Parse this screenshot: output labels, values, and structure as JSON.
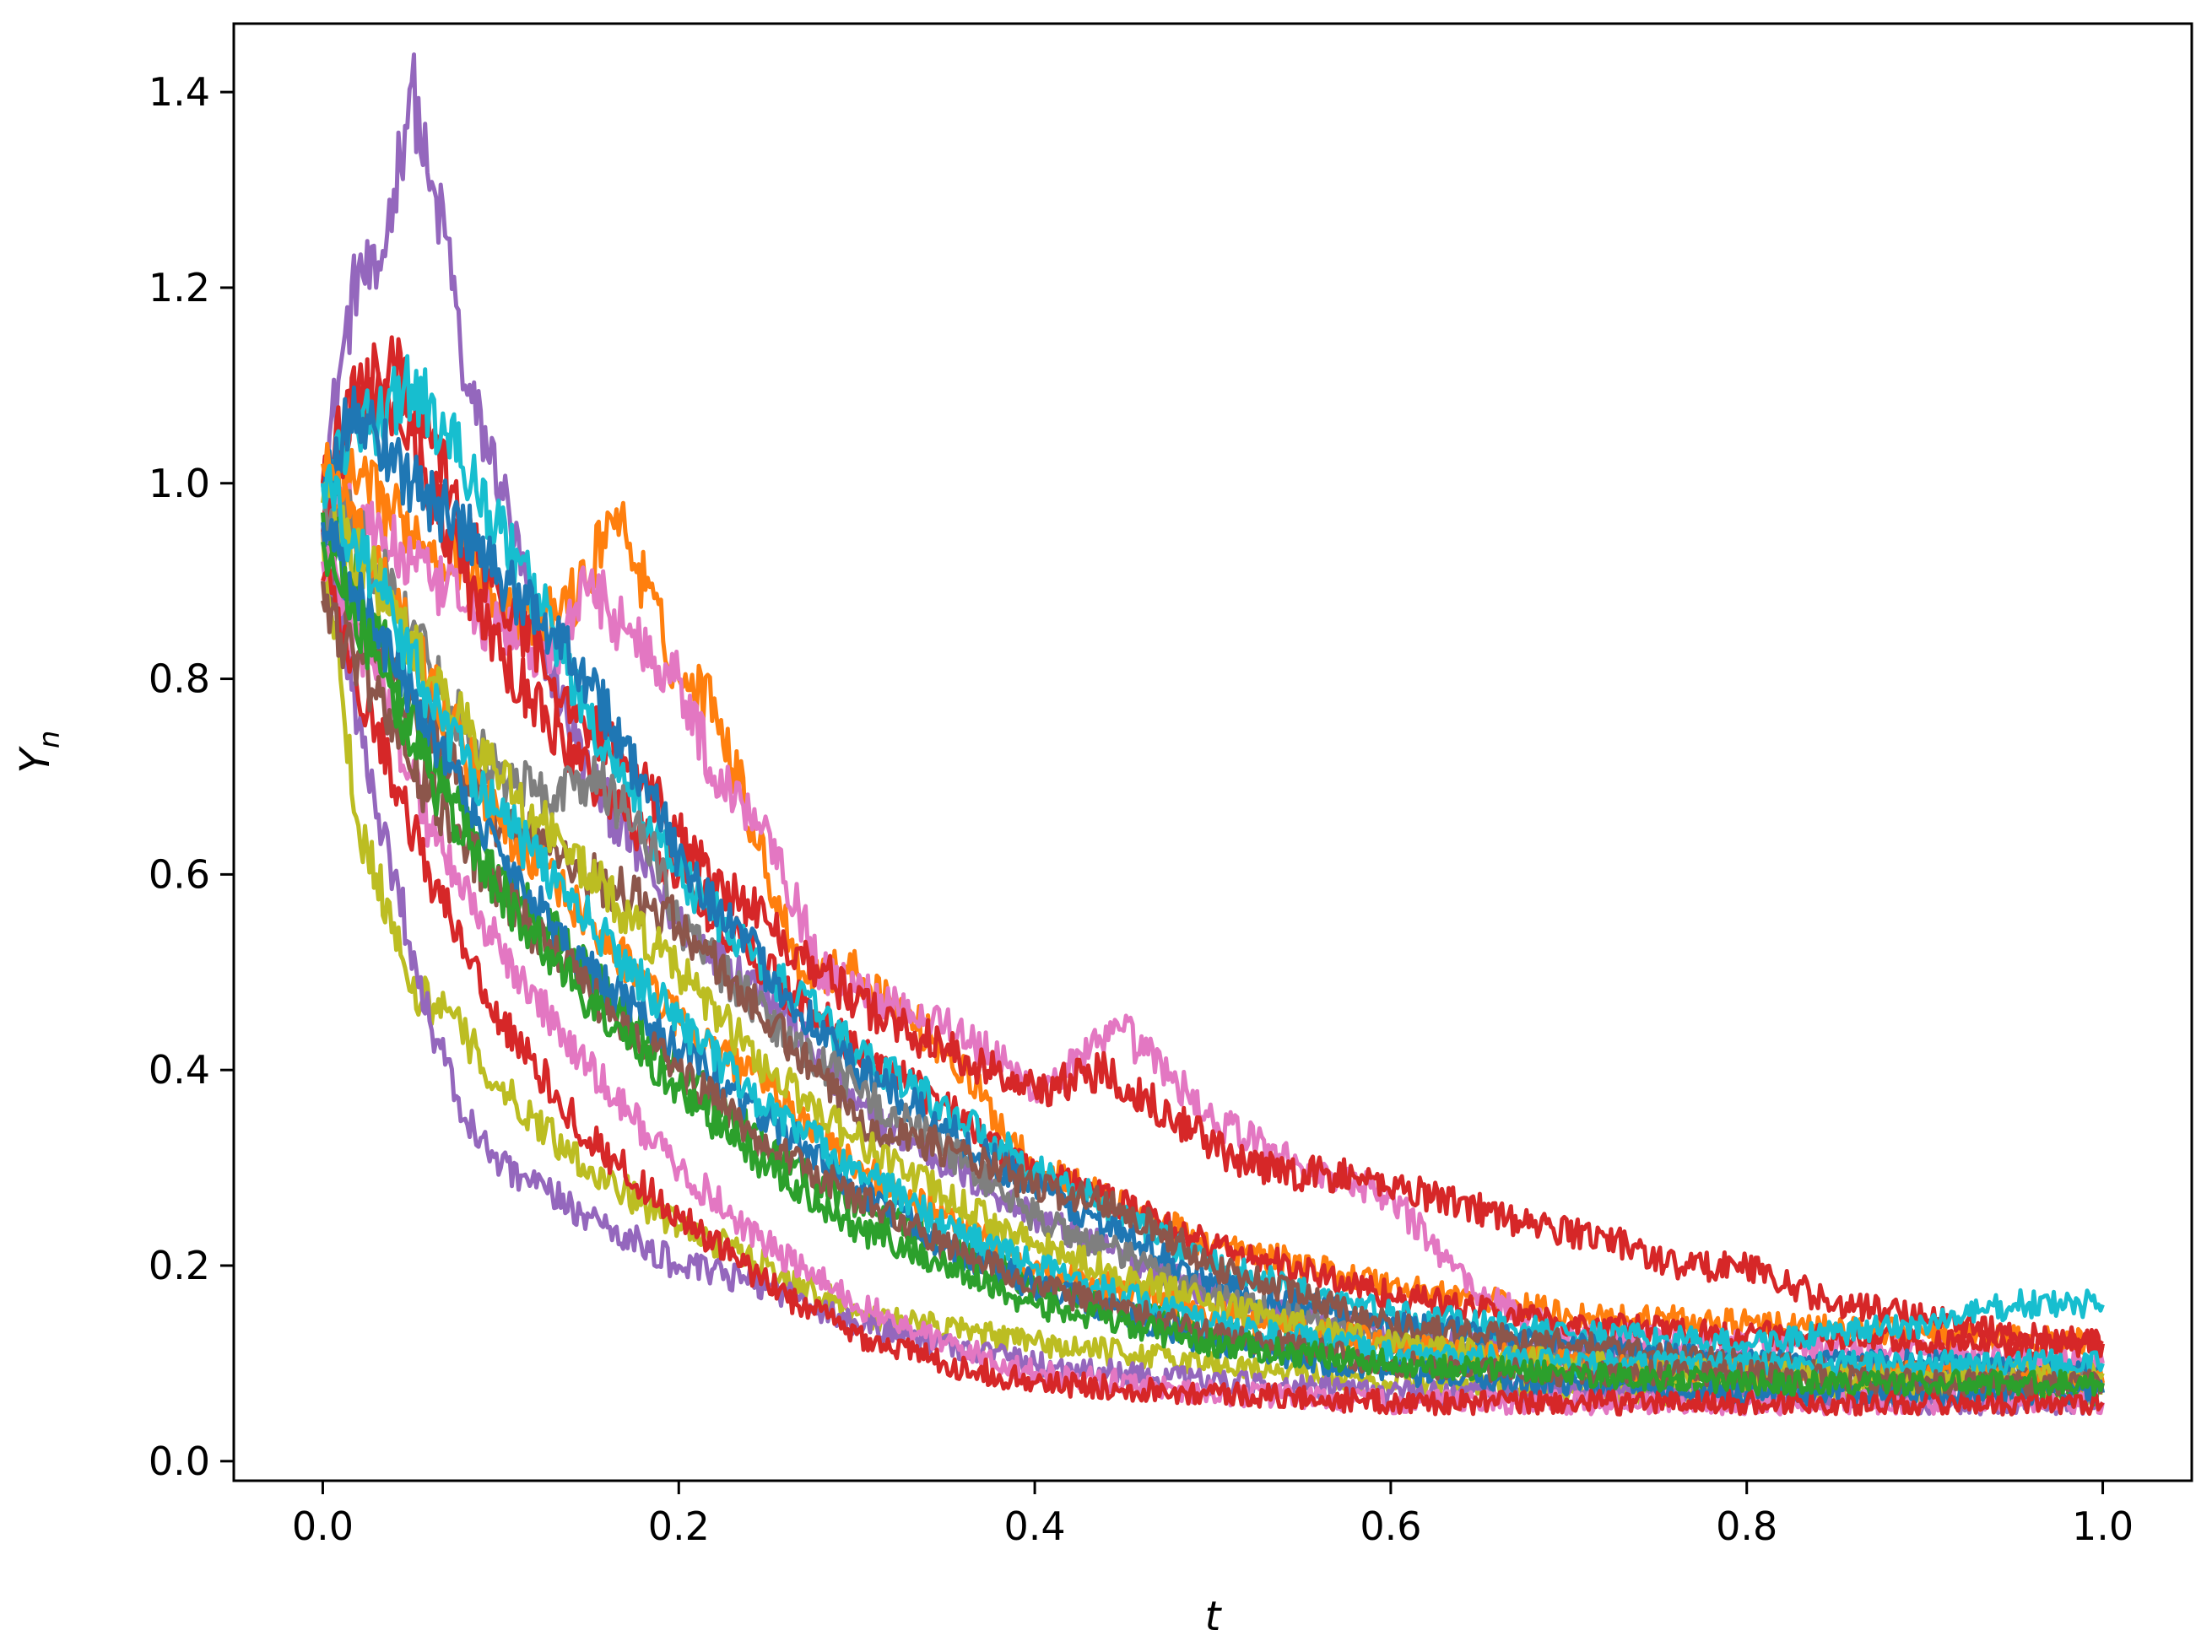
{
  "chart_data": {
    "type": "line",
    "title": "",
    "xlabel": "t",
    "ylabel": {
      "main": "Y",
      "sub": "n"
    },
    "xlim": [
      -0.05,
      1.05
    ],
    "ylim": [
      -0.02,
      1.47
    ],
    "x_ticks": [
      {
        "value": 0.0,
        "label": "0.0"
      },
      {
        "value": 0.2,
        "label": "0.2"
      },
      {
        "value": 0.4,
        "label": "0.4"
      },
      {
        "value": 0.6,
        "label": "0.6"
      },
      {
        "value": 0.8,
        "label": "0.8"
      },
      {
        "value": 1.0,
        "label": "1.0"
      }
    ],
    "y_ticks": [
      {
        "value": 0.0,
        "label": "0.0"
      },
      {
        "value": 0.2,
        "label": "0.2"
      },
      {
        "value": 0.4,
        "label": "0.4"
      },
      {
        "value": 0.6,
        "label": "0.6"
      },
      {
        "value": 0.8,
        "label": "0.8"
      },
      {
        "value": 1.0,
        "label": "1.0"
      },
      {
        "value": 1.2,
        "label": "1.2"
      },
      {
        "value": 1.4,
        "label": "1.4"
      }
    ],
    "grid": false,
    "legend": false,
    "palette": [
      "#1f77b4",
      "#ff7f0e",
      "#2ca02c",
      "#d62728",
      "#9467bd",
      "#8c564b",
      "#e377c2",
      "#7f7f7f",
      "#bcbd22",
      "#17becf"
    ],
    "series": [
      {
        "color": "#9467bd",
        "x": [
          0,
          0.01,
          0.02,
          0.03,
          0.04,
          0.05,
          0.06,
          0.07,
          0.08,
          0.1,
          0.12,
          0.15,
          0.2,
          0.25,
          0.3,
          0.4,
          0.5,
          0.6,
          0.7,
          0.8,
          0.9,
          1.0
        ],
        "y": [
          1.0,
          1.12,
          1.22,
          1.2,
          1.3,
          1.41,
          1.3,
          1.25,
          1.1,
          1.0,
          0.85,
          0.7,
          0.55,
          0.48,
          0.36,
          0.25,
          0.17,
          0.13,
          0.11,
          0.1,
          0.09,
          0.08
        ]
      },
      {
        "color": "#ff7f0e",
        "x": [
          0,
          0.02,
          0.05,
          0.08,
          0.1,
          0.12,
          0.15,
          0.16,
          0.17,
          0.2,
          0.22,
          0.25,
          0.27,
          0.3,
          0.35,
          0.4,
          0.5,
          0.6,
          0.7,
          0.8,
          0.9,
          1.0
        ],
        "y": [
          1.0,
          1.0,
          0.95,
          0.92,
          0.88,
          0.85,
          0.9,
          0.97,
          0.95,
          0.8,
          0.78,
          0.6,
          0.5,
          0.5,
          0.42,
          0.3,
          0.22,
          0.18,
          0.15,
          0.14,
          0.13,
          0.12
        ]
      },
      {
        "color": "#e377c2",
        "x": [
          0,
          0.03,
          0.06,
          0.1,
          0.13,
          0.15,
          0.17,
          0.2,
          0.22,
          0.25,
          0.28,
          0.3,
          0.35,
          0.4,
          0.45,
          0.5,
          0.55,
          0.6,
          0.65,
          0.7,
          0.8,
          0.9,
          1.0
        ],
        "y": [
          1.0,
          0.95,
          0.9,
          0.85,
          0.82,
          0.9,
          0.85,
          0.8,
          0.7,
          0.65,
          0.5,
          0.48,
          0.45,
          0.38,
          0.44,
          0.35,
          0.3,
          0.27,
          0.17,
          0.13,
          0.12,
          0.11,
          0.1
        ]
      },
      {
        "color": "#d62728",
        "x": [
          0,
          0.02,
          0.04,
          0.06,
          0.08,
          0.1,
          0.13,
          0.15,
          0.18,
          0.2,
          0.22,
          0.25,
          0.3,
          0.35,
          0.4,
          0.44,
          0.48,
          0.52,
          0.58,
          0.63,
          0.68,
          0.72,
          0.76,
          0.8,
          0.85,
          0.9,
          0.95,
          1.0
        ],
        "y": [
          1.0,
          1.1,
          1.12,
          1.05,
          0.95,
          0.88,
          0.8,
          0.75,
          0.7,
          0.64,
          0.6,
          0.55,
          0.47,
          0.42,
          0.38,
          0.4,
          0.35,
          0.3,
          0.29,
          0.27,
          0.24,
          0.23,
          0.2,
          0.2,
          0.16,
          0.15,
          0.13,
          0.12
        ]
      },
      {
        "color": "#d62728",
        "x": [
          0,
          0.02,
          0.05,
          0.08,
          0.1,
          0.15,
          0.2,
          0.25,
          0.3,
          0.4,
          0.5,
          0.6,
          0.7,
          0.8,
          0.9,
          1.0
        ],
        "y": [
          0.95,
          1.1,
          1.05,
          0.9,
          0.82,
          0.7,
          0.6,
          0.5,
          0.42,
          0.3,
          0.22,
          0.17,
          0.14,
          0.13,
          0.12,
          0.12
        ]
      },
      {
        "color": "#17becf",
        "x": [
          0,
          0.02,
          0.05,
          0.07,
          0.1,
          0.13,
          0.15,
          0.2,
          0.25,
          0.3,
          0.4,
          0.5,
          0.6,
          0.7,
          0.8,
          0.9,
          0.95,
          1.0
        ],
        "y": [
          1.0,
          1.05,
          1.1,
          1.05,
          0.95,
          0.85,
          0.75,
          0.6,
          0.5,
          0.42,
          0.3,
          0.2,
          0.15,
          0.13,
          0.12,
          0.14,
          0.16,
          0.16
        ]
      },
      {
        "color": "#1f77b4",
        "x": [
          0,
          0.02,
          0.05,
          0.08,
          0.1,
          0.13,
          0.15,
          0.2,
          0.25,
          0.3,
          0.4,
          0.5,
          0.6,
          0.7,
          0.8,
          0.9,
          1.0
        ],
        "y": [
          1.0,
          1.08,
          1.0,
          0.95,
          0.9,
          0.85,
          0.8,
          0.62,
          0.5,
          0.4,
          0.28,
          0.18,
          0.14,
          0.12,
          0.1,
          0.1,
          0.09
        ]
      },
      {
        "color": "#7f7f7f",
        "x": [
          0,
          0.02,
          0.05,
          0.08,
          0.1,
          0.13,
          0.15,
          0.18,
          0.2,
          0.25,
          0.3,
          0.35,
          0.4,
          0.5,
          0.6,
          0.7,
          0.8,
          0.9,
          1.0
        ],
        "y": [
          0.98,
          0.95,
          0.85,
          0.75,
          0.7,
          0.68,
          0.7,
          0.65,
          0.55,
          0.45,
          0.38,
          0.32,
          0.25,
          0.17,
          0.12,
          0.1,
          0.09,
          0.08,
          0.08
        ]
      },
      {
        "color": "#8c564b",
        "x": [
          0,
          0.02,
          0.05,
          0.08,
          0.1,
          0.13,
          0.15,
          0.2,
          0.25,
          0.3,
          0.35,
          0.4,
          0.45,
          0.5,
          0.55,
          0.6,
          0.7,
          0.8,
          0.9,
          1.0
        ],
        "y": [
          0.9,
          0.85,
          0.78,
          0.7,
          0.65,
          0.63,
          0.6,
          0.55,
          0.45,
          0.35,
          0.32,
          0.28,
          0.26,
          0.2,
          0.17,
          0.14,
          0.12,
          0.1,
          0.09,
          0.08
        ]
      },
      {
        "color": "#bcbd22",
        "x": [
          0,
          0.01,
          0.02,
          0.03,
          0.04,
          0.05,
          0.07,
          0.1,
          0.15,
          0.2,
          0.25,
          0.3,
          0.4,
          0.5,
          0.6,
          0.7,
          0.8,
          0.9,
          1.0
        ],
        "y": [
          0.95,
          0.8,
          0.65,
          0.6,
          0.55,
          0.48,
          0.46,
          0.38,
          0.3,
          0.24,
          0.2,
          0.15,
          0.12,
          0.1,
          0.08,
          0.07,
          0.07,
          0.07,
          0.07
        ]
      },
      {
        "color": "#9467bd",
        "x": [
          0,
          0.02,
          0.04,
          0.06,
          0.08,
          0.1,
          0.12,
          0.15,
          0.2,
          0.25,
          0.3,
          0.4,
          0.5,
          0.6,
          0.7,
          0.8,
          0.9,
          1.0
        ],
        "y": [
          0.95,
          0.75,
          0.6,
          0.45,
          0.35,
          0.3,
          0.28,
          0.25,
          0.2,
          0.18,
          0.14,
          0.1,
          0.08,
          0.07,
          0.07,
          0.07,
          0.06,
          0.06
        ]
      },
      {
        "color": "#2ca02c",
        "x": [
          0,
          0.03,
          0.06,
          0.1,
          0.15,
          0.2,
          0.25,
          0.3,
          0.35,
          0.4,
          0.5,
          0.6,
          0.7,
          0.8,
          0.9,
          1.0
        ],
        "y": [
          0.97,
          0.85,
          0.72,
          0.6,
          0.5,
          0.4,
          0.32,
          0.26,
          0.22,
          0.18,
          0.13,
          0.1,
          0.09,
          0.08,
          0.08,
          0.07
        ]
      },
      {
        "color": "#ff7f0e",
        "x": [
          0,
          0.03,
          0.06,
          0.1,
          0.15,
          0.2,
          0.25,
          0.3,
          0.35,
          0.4,
          0.5,
          0.6,
          0.7,
          0.8,
          0.9,
          1.0
        ],
        "y": [
          1.02,
          0.92,
          0.8,
          0.65,
          0.55,
          0.45,
          0.38,
          0.3,
          0.25,
          0.2,
          0.15,
          0.12,
          0.1,
          0.09,
          0.09,
          0.08
        ]
      },
      {
        "color": "#e377c2",
        "x": [
          0,
          0.03,
          0.06,
          0.1,
          0.15,
          0.2,
          0.25,
          0.3,
          0.35,
          0.4,
          0.5,
          0.6,
          0.7,
          0.8,
          0.9,
          1.0
        ],
        "y": [
          0.92,
          0.8,
          0.65,
          0.52,
          0.4,
          0.3,
          0.22,
          0.16,
          0.12,
          0.09,
          0.07,
          0.06,
          0.06,
          0.06,
          0.06,
          0.06
        ]
      },
      {
        "color": "#bcbd22",
        "x": [
          0,
          0.03,
          0.06,
          0.1,
          0.15,
          0.2,
          0.25,
          0.3,
          0.35,
          0.4,
          0.5,
          0.6,
          0.7,
          0.8,
          0.9,
          1.0
        ],
        "y": [
          0.98,
          0.9,
          0.8,
          0.7,
          0.6,
          0.5,
          0.4,
          0.33,
          0.27,
          0.22,
          0.16,
          0.12,
          0.1,
          0.09,
          0.09,
          0.09
        ]
      },
      {
        "color": "#1f77b4",
        "x": [
          0,
          0.03,
          0.06,
          0.1,
          0.15,
          0.2,
          0.25,
          0.3,
          0.35,
          0.4,
          0.5,
          0.6,
          0.7,
          0.8,
          0.9,
          1.0
        ],
        "y": [
          0.96,
          0.85,
          0.75,
          0.62,
          0.5,
          0.42,
          0.35,
          0.28,
          0.22,
          0.18,
          0.12,
          0.09,
          0.08,
          0.07,
          0.07,
          0.07
        ]
      },
      {
        "color": "#d62728",
        "x": [
          0,
          0.03,
          0.06,
          0.1,
          0.15,
          0.2,
          0.25,
          0.3,
          0.35,
          0.4,
          0.5,
          0.6,
          0.7,
          0.8,
          0.9,
          1.0
        ],
        "y": [
          0.9,
          0.75,
          0.6,
          0.45,
          0.33,
          0.25,
          0.18,
          0.13,
          0.1,
          0.08,
          0.07,
          0.06,
          0.06,
          0.06,
          0.06,
          0.06
        ]
      },
      {
        "color": "#17becf",
        "x": [
          0,
          0.03,
          0.06,
          0.1,
          0.15,
          0.2,
          0.25,
          0.3,
          0.35,
          0.4,
          0.5,
          0.6,
          0.7,
          0.8,
          0.9,
          1.0
        ],
        "y": [
          1.0,
          0.9,
          0.78,
          0.66,
          0.55,
          0.45,
          0.36,
          0.3,
          0.24,
          0.2,
          0.14,
          0.11,
          0.1,
          0.1,
          0.1,
          0.1
        ]
      },
      {
        "color": "#8c564b",
        "x": [
          0,
          0.03,
          0.06,
          0.1,
          0.15,
          0.2,
          0.25,
          0.3,
          0.35,
          0.4,
          0.5,
          0.6,
          0.7,
          0.8,
          0.9,
          1.0
        ],
        "y": [
          0.88,
          0.78,
          0.68,
          0.58,
          0.48,
          0.4,
          0.32,
          0.27,
          0.22,
          0.18,
          0.13,
          0.1,
          0.09,
          0.09,
          0.08,
          0.08
        ]
      },
      {
        "color": "#2ca02c",
        "x": [
          0,
          0.03,
          0.06,
          0.1,
          0.15,
          0.2,
          0.25,
          0.3,
          0.35,
          0.4,
          0.5,
          0.6,
          0.7,
          0.8,
          0.9,
          1.0
        ],
        "y": [
          0.94,
          0.82,
          0.7,
          0.58,
          0.47,
          0.38,
          0.3,
          0.24,
          0.2,
          0.16,
          0.12,
          0.1,
          0.09,
          0.08,
          0.08,
          0.08
        ]
      }
    ]
  }
}
